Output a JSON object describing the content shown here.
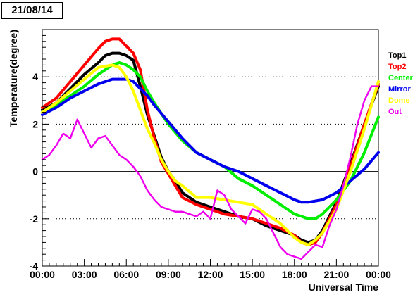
{
  "date_label": "21/08/14",
  "chart_data": {
    "type": "line",
    "title": "",
    "xlabel": "Universal Time",
    "ylabel": "Temperature(degree)",
    "xlim": [
      0,
      24
    ],
    "ylim": [
      -4,
      6
    ],
    "x_ticks": [
      0,
      3,
      6,
      9,
      12,
      15,
      18,
      21,
      24
    ],
    "x_tick_labels": [
      "00:00",
      "03:00",
      "06:00",
      "09:00",
      "12:00",
      "15:00",
      "18:00",
      "21:00",
      "00:00"
    ],
    "y_ticks": [
      -4,
      -2,
      0,
      2,
      4
    ],
    "y_tick_labels": [
      "-4",
      "-2",
      "0",
      "2",
      "4"
    ],
    "grid": "horizontal dotted",
    "legend_position": "right",
    "series": [
      {
        "name": "Top1",
        "color": "#000000",
        "x": [
          0,
          1,
          2,
          3,
          4,
          4.5,
          5,
          5.5,
          6,
          6.5,
          7,
          7.5,
          8,
          8.5,
          9,
          9.5,
          10,
          11,
          12,
          13,
          14,
          15,
          16,
          17,
          18,
          18.5,
          19,
          19.5,
          20,
          21,
          22,
          23,
          24
        ],
        "y": [
          2.6,
          2.9,
          3.5,
          4.1,
          4.6,
          4.9,
          5.0,
          5.0,
          4.9,
          4.7,
          3.6,
          2.4,
          1.5,
          0.6,
          0.0,
          -0.4,
          -0.9,
          -1.3,
          -1.5,
          -1.7,
          -1.9,
          -2.0,
          -2.3,
          -2.5,
          -2.7,
          -2.9,
          -3.0,
          -2.9,
          -2.5,
          -1.3,
          0.3,
          2.0,
          3.6
        ]
      },
      {
        "name": "Top2",
        "color": "#ff0000",
        "x": [
          0,
          1,
          2,
          3,
          4,
          4.5,
          5,
          5.5,
          6,
          6.5,
          7,
          7.5,
          8,
          8.5,
          9,
          9.5,
          10,
          11,
          12,
          13,
          14,
          15,
          16,
          17,
          18,
          18.5,
          19,
          19.5,
          20,
          21,
          22,
          23,
          24
        ],
        "y": [
          2.7,
          3.1,
          3.8,
          4.5,
          5.2,
          5.5,
          5.6,
          5.6,
          5.3,
          5.0,
          4.3,
          2.6,
          1.4,
          0.4,
          -0.1,
          -0.6,
          -1.1,
          -1.4,
          -1.6,
          -1.8,
          -1.9,
          -2.0,
          -2.2,
          -2.4,
          -2.7,
          -3.0,
          -3.1,
          -3.0,
          -2.6,
          -1.4,
          0.2,
          2.0,
          3.7
        ]
      },
      {
        "name": "Center",
        "color": "#00ee00",
        "x": [
          0,
          1,
          2,
          3,
          4,
          5,
          5.5,
          6,
          6.5,
          7,
          7.5,
          8,
          9,
          10,
          11,
          12,
          13,
          14,
          15,
          16,
          17,
          18,
          18.5,
          19,
          19.5,
          20,
          21,
          22,
          23,
          24
        ],
        "y": [
          2.5,
          2.8,
          3.2,
          3.6,
          4.1,
          4.5,
          4.6,
          4.5,
          4.3,
          4.0,
          3.4,
          2.9,
          2.0,
          1.3,
          0.8,
          0.5,
          0.2,
          -0.3,
          -0.6,
          -1.0,
          -1.4,
          -1.8,
          -1.9,
          -2.0,
          -2.0,
          -1.8,
          -1.2,
          -0.4,
          0.8,
          2.3
        ]
      },
      {
        "name": "Mirror",
        "color": "#0000ee",
        "x": [
          0,
          1,
          2,
          3,
          4,
          5,
          6,
          6.5,
          7,
          7.5,
          8,
          9,
          10,
          11,
          12,
          13,
          14,
          15,
          16,
          17,
          18,
          18.5,
          19,
          20,
          21,
          22,
          23,
          24
        ],
        "y": [
          2.4,
          2.7,
          3.1,
          3.4,
          3.7,
          3.9,
          3.9,
          3.8,
          3.5,
          3.2,
          2.8,
          2.1,
          1.4,
          0.8,
          0.5,
          0.2,
          0.0,
          -0.3,
          -0.6,
          -0.9,
          -1.2,
          -1.3,
          -1.3,
          -1.2,
          -0.9,
          -0.4,
          0.1,
          0.8
        ]
      },
      {
        "name": "Dome",
        "color": "#ffff00",
        "x": [
          0,
          1,
          2,
          3,
          4,
          5,
          5.5,
          6,
          6.5,
          7,
          7.5,
          8,
          8.5,
          9,
          9.5,
          10,
          11,
          12,
          13,
          14,
          15,
          16,
          17,
          18,
          18.5,
          19,
          19.5,
          20,
          21,
          22,
          23,
          24
        ],
        "y": [
          2.5,
          2.9,
          3.4,
          3.9,
          4.4,
          4.5,
          4.4,
          4.0,
          3.4,
          2.6,
          1.8,
          1.2,
          0.5,
          0.0,
          -0.4,
          -0.6,
          -1.1,
          -1.1,
          -1.2,
          -1.3,
          -1.4,
          -1.8,
          -2.2,
          -2.8,
          -3.0,
          -3.1,
          -2.9,
          -2.6,
          -1.6,
          0.0,
          1.8,
          3.8
        ]
      },
      {
        "name": "Out",
        "color": "#ee00ee",
        "x": [
          0,
          0.5,
          1,
          1.5,
          2,
          2.5,
          3,
          3.5,
          4,
          4.5,
          5,
          5.5,
          6,
          6.5,
          7,
          7.5,
          8,
          8.5,
          9,
          9.5,
          10,
          10.5,
          11,
          11.5,
          12,
          12.5,
          13,
          13.5,
          14,
          14.5,
          15,
          15.5,
          16,
          16.5,
          17,
          17.5,
          18,
          18.5,
          19,
          19.5,
          20,
          20.5,
          21,
          21.5,
          22,
          22.5,
          23,
          23.5,
          24
        ],
        "y": [
          0.5,
          0.7,
          1.1,
          1.6,
          1.4,
          2.2,
          1.6,
          1.0,
          1.4,
          1.5,
          1.1,
          0.7,
          0.5,
          0.2,
          -0.2,
          -0.8,
          -1.2,
          -1.5,
          -1.6,
          -1.7,
          -1.7,
          -1.8,
          -1.9,
          -1.7,
          -2.0,
          -0.8,
          -1.0,
          -1.6,
          -1.9,
          -2.2,
          -1.6,
          -1.7,
          -2.0,
          -2.6,
          -3.2,
          -3.5,
          -3.6,
          -3.7,
          -3.4,
          -3.1,
          -3.2,
          -2.3,
          -1.6,
          -0.6,
          0.6,
          2.0,
          3.0,
          3.6,
          3.6
        ]
      }
    ]
  }
}
